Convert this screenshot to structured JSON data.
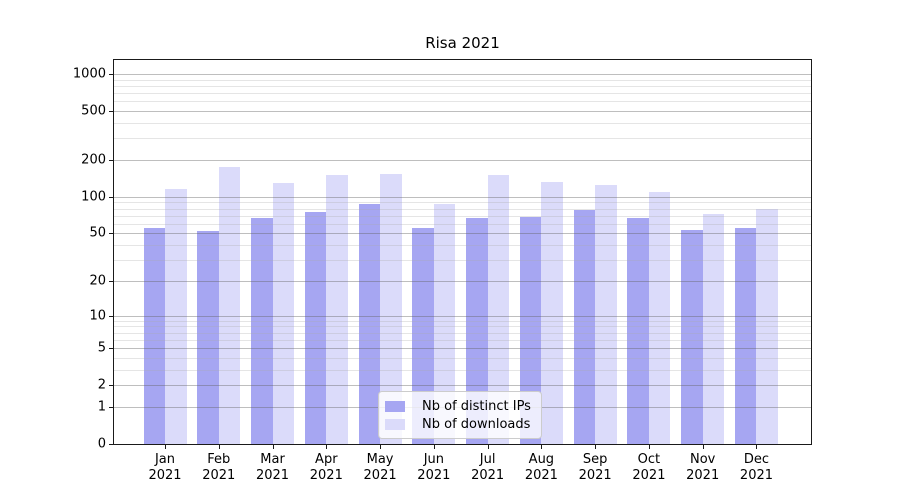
{
  "title": "Risa 2021",
  "chart_data": {
    "type": "bar",
    "title": "Risa 2021",
    "categories": [
      "Jan",
      "Feb",
      "Mar",
      "Apr",
      "May",
      "Jun",
      "Jul",
      "Aug",
      "Sep",
      "Oct",
      "Nov",
      "Dec"
    ],
    "category_year": "2021",
    "series": [
      {
        "key": "distinct-ips",
        "name": "Nb of distinct IPs",
        "color": "#a6a6f2",
        "values": [
          56,
          52,
          67,
          75,
          88,
          55,
          67,
          68,
          78,
          67,
          53,
          55
        ]
      },
      {
        "key": "downloads",
        "name": "Nb of downloads",
        "color": "#dbdbfa",
        "values": [
          115,
          175,
          130,
          150,
          155,
          88,
          150,
          132,
          124,
          110,
          72,
          79
        ]
      }
    ],
    "xlabel": "",
    "ylabel": "",
    "y_scale": "log1p",
    "ylim": [
      0,
      1300
    ],
    "y_major_ticks": [
      0,
      1,
      2,
      5,
      10,
      20,
      50,
      100,
      200,
      500,
      1000
    ],
    "y_minor_gridlines": [
      3,
      4,
      6,
      7,
      8,
      9,
      30,
      40,
      60,
      70,
      80,
      90,
      300,
      400,
      600,
      700,
      800,
      900
    ],
    "grid": "both",
    "legend_position": "lower center"
  },
  "colors": {
    "major_grid": "rgba(100,100,100,0.42)",
    "minor_grid": "rgba(170,170,170,0.30)",
    "spine": "#1a1a1a",
    "text": "#000000",
    "legend_border": "#cccccc",
    "legend_bg": "rgba(255,255,255,0.8)"
  }
}
